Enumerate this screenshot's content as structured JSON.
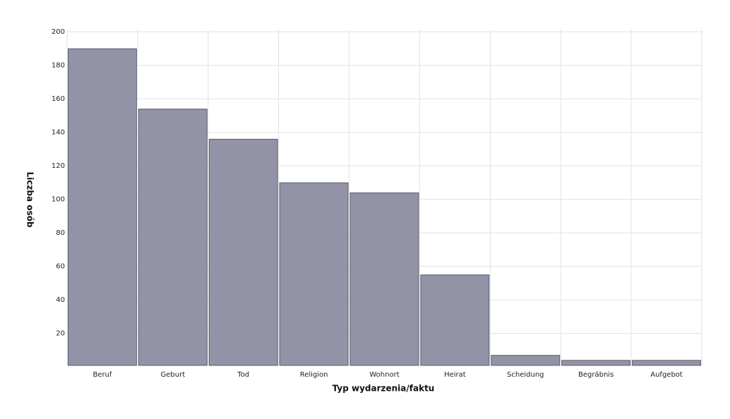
{
  "chart_data": {
    "type": "bar",
    "x_label": "Typ wydarzenia/faktu",
    "y_label": "Liczba osób",
    "categories": [
      "Beruf",
      "Geburt",
      "Tod",
      "Religion",
      "Wohnort",
      "Heirat",
      "Scheidung",
      "Begräbnis",
      "Aufgebot"
    ],
    "values": [
      189,
      153,
      135,
      109,
      103,
      54,
      6,
      3,
      3
    ],
    "color": "#9393a8",
    "ylim": [
      0,
      200
    ],
    "yticks": [
      20,
      40,
      60,
      80,
      100,
      120,
      140,
      160,
      180,
      200
    ],
    "grid": true
  }
}
